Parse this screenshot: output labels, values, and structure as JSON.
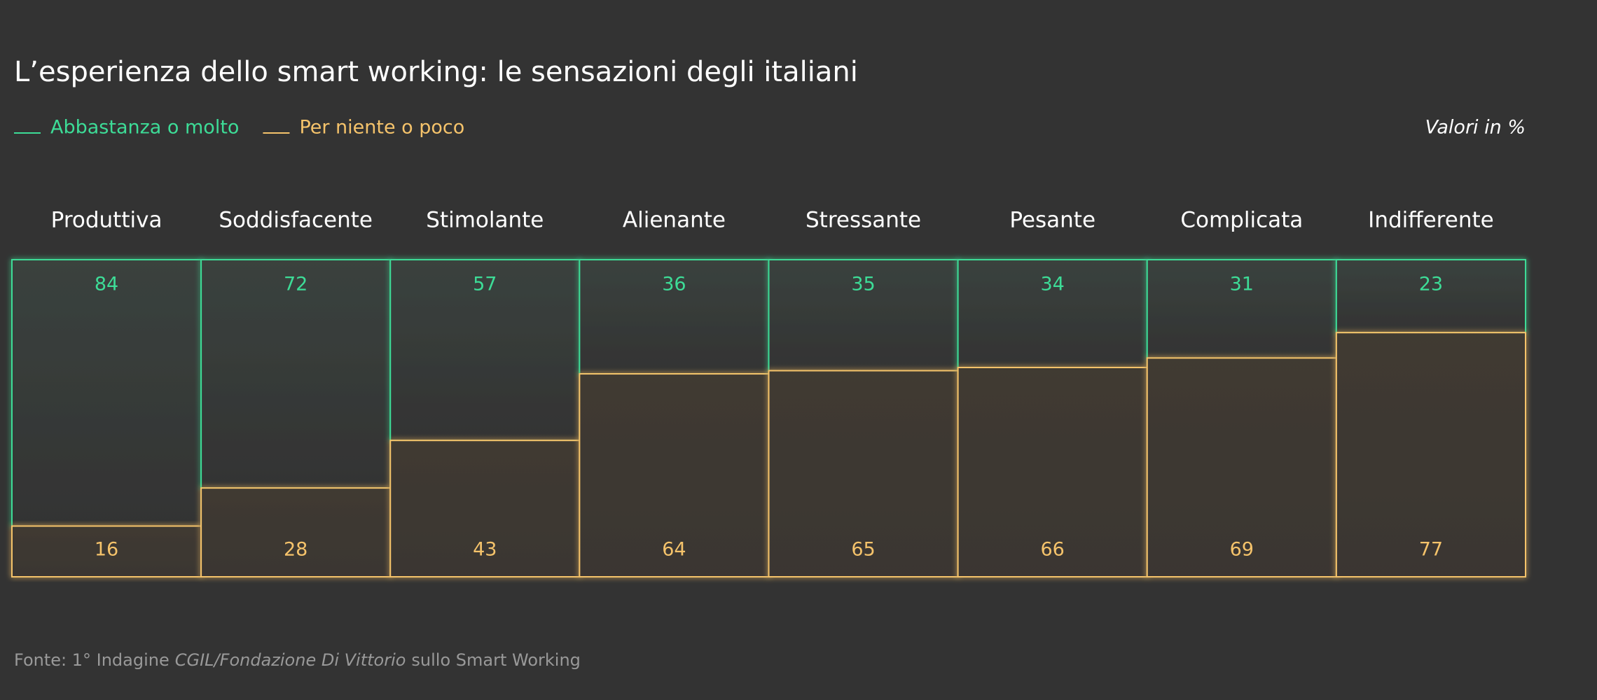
{
  "chart_data": {
    "type": "bar",
    "stacked": true,
    "title": "L’esperienza dello smart working: le sensazioni degli italiani",
    "note": "Valori in %",
    "categories": [
      "Produttiva",
      "Soddisfacente",
      "Stimolante",
      "Alienante",
      "Stressante",
      "Pesante",
      "Complicata",
      "Indifferente"
    ],
    "series": [
      {
        "name": "Abbastanza o molto",
        "color": "#3ddc97",
        "values": [
          84,
          72,
          57,
          36,
          35,
          34,
          31,
          23
        ]
      },
      {
        "name": "Per niente o poco",
        "color": "#f5c36b",
        "values": [
          16,
          28,
          43,
          64,
          65,
          66,
          69,
          77
        ]
      }
    ],
    "source": {
      "prefix": "Fonte: 1° Indagine",
      "italic": "CGIL/Fondazione Di Vittorio",
      "suffix": "sullo Smart Working"
    }
  }
}
